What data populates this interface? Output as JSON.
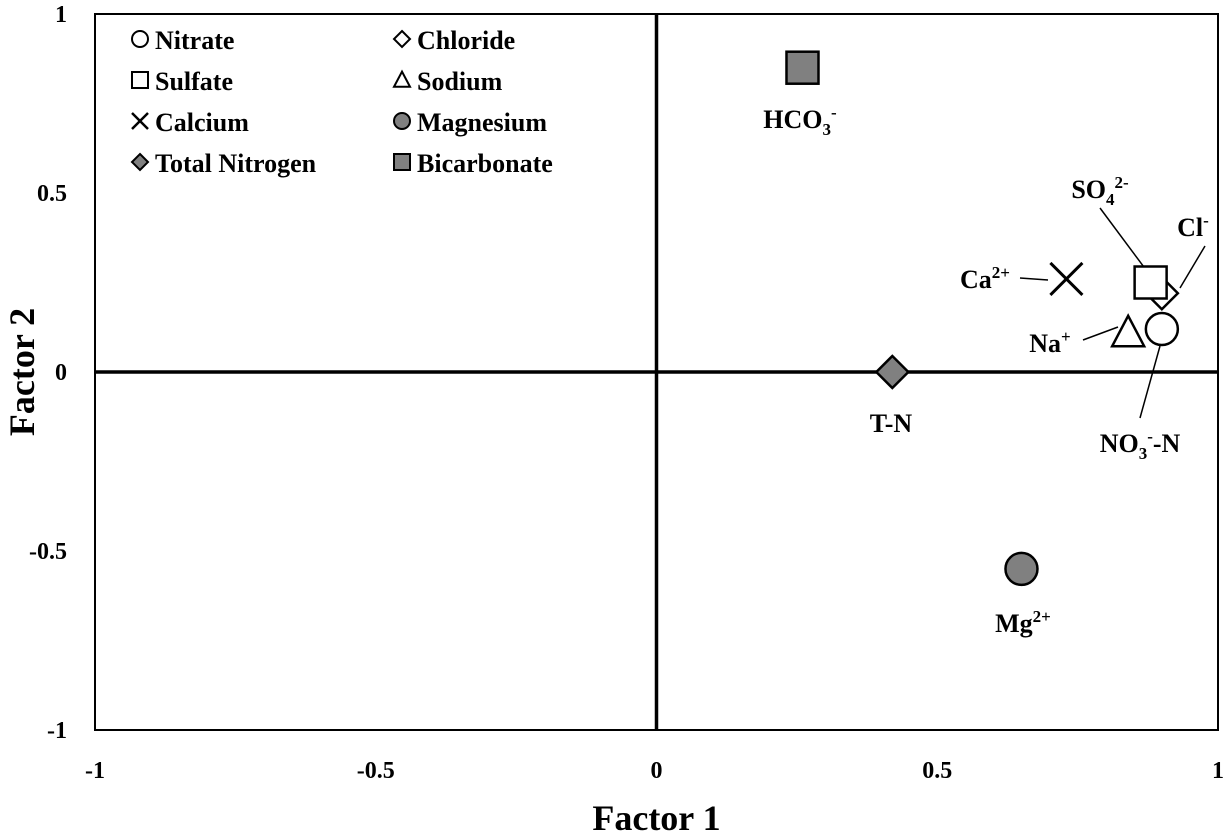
{
  "chart_data": {
    "type": "scatter",
    "xlabel": "Factor 1",
    "ylabel": "Factor 2",
    "xlim": [
      -1,
      1
    ],
    "ylim": [
      -1,
      1
    ],
    "x_ticks": [
      "-1",
      "-0.5",
      "0",
      "0.5",
      "1"
    ],
    "y_ticks": [
      "1",
      "0.5",
      "0",
      "-0.5",
      "-1"
    ],
    "grid": false,
    "legend_position": "top-left",
    "series": [
      {
        "name": "Nitrate",
        "marker": "circle-open",
        "color": "#ffffff",
        "x": 0.9,
        "y": 0.12,
        "point_label": {
          "base": "NO",
          "sub": "3",
          "sup": "-",
          "tail": "-N"
        }
      },
      {
        "name": "Chloride",
        "marker": "diamond-open",
        "color": "#ffffff",
        "x": 0.9,
        "y": 0.22,
        "point_label": {
          "base": "Cl",
          "sub": "",
          "sup": "-",
          "tail": ""
        }
      },
      {
        "name": "Sulfate",
        "marker": "square-open",
        "color": "#ffffff",
        "x": 0.88,
        "y": 0.25,
        "point_label": {
          "base": "SO",
          "sub": "4",
          "sup": "2-",
          "tail": ""
        }
      },
      {
        "name": "Sodium",
        "marker": "triangle-open",
        "color": "#ffffff",
        "x": 0.84,
        "y": 0.11,
        "point_label": {
          "base": "Na",
          "sub": "",
          "sup": "+",
          "tail": ""
        }
      },
      {
        "name": "Calcium",
        "marker": "x",
        "color": "#000000",
        "x": 0.73,
        "y": 0.26,
        "point_label": {
          "base": "Ca",
          "sub": "",
          "sup": "2+",
          "tail": ""
        }
      },
      {
        "name": "Magnesium",
        "marker": "circle-filled",
        "color": "#808080",
        "x": 0.65,
        "y": -0.55,
        "point_label": {
          "base": "Mg",
          "sub": "",
          "sup": "2+",
          "tail": ""
        }
      },
      {
        "name": "Total Nitrogen",
        "marker": "diamond-filled",
        "color": "#808080",
        "x": 0.42,
        "y": 0.0,
        "point_label": {
          "base": "T-N",
          "sub": "",
          "sup": "",
          "tail": ""
        }
      },
      {
        "name": "Bicarbonate",
        "marker": "square-filled",
        "color": "#808080",
        "x": 0.26,
        "y": 0.85,
        "point_label": {
          "base": "HCO",
          "sub": "3",
          "sup": "-",
          "tail": ""
        }
      }
    ]
  }
}
